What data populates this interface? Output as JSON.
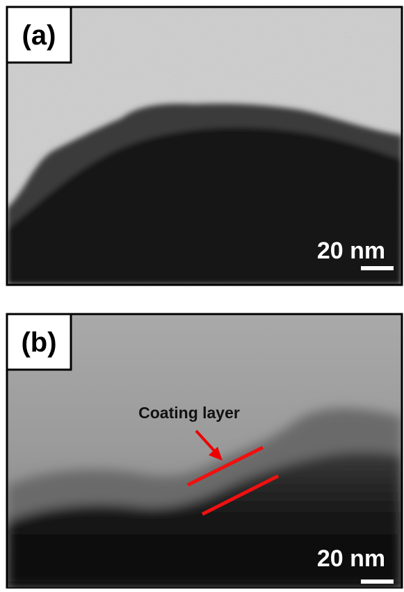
{
  "panels": [
    {
      "label": "(a)",
      "scale_bar": "20 nm"
    },
    {
      "label": "(b)",
      "scale_bar": "20 nm",
      "annotation": "Coating layer"
    }
  ]
}
